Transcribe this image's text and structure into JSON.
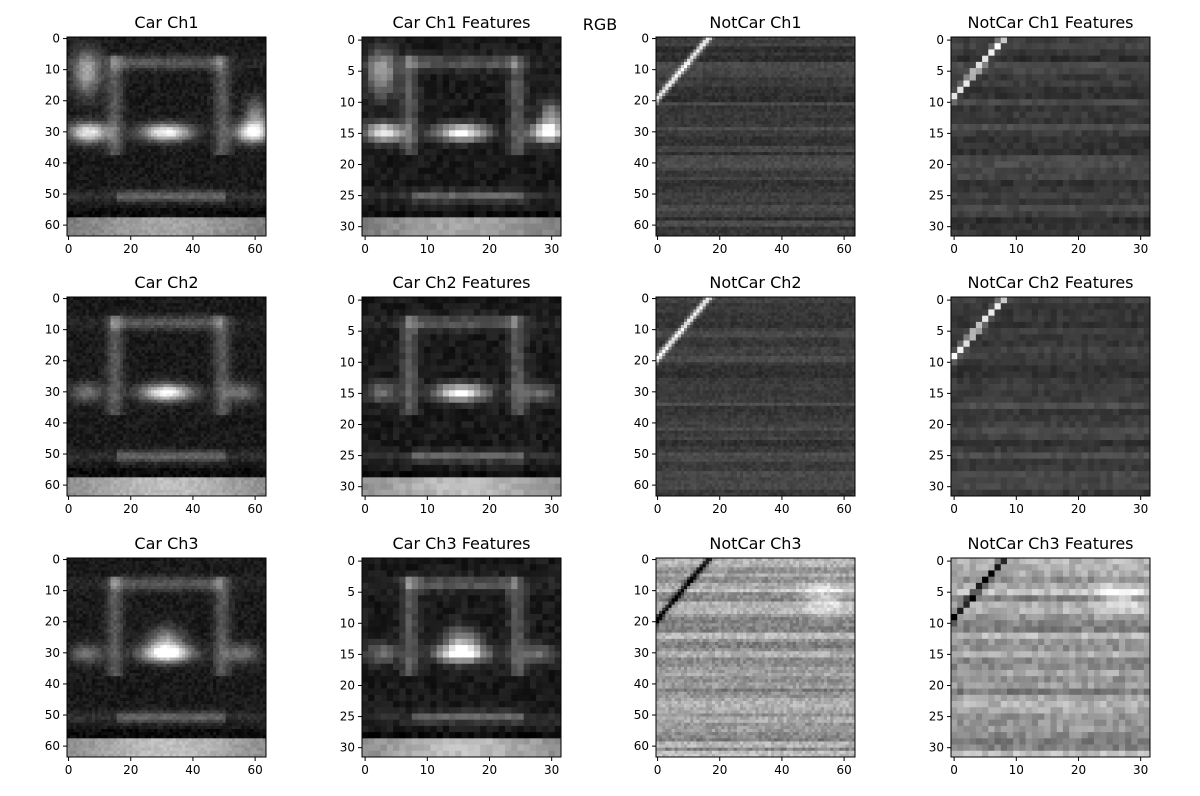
{
  "figure": {
    "suptitle": "RGB"
  },
  "chart_data": [
    {
      "type": "heatmap",
      "title": "Car Ch1",
      "kind": "car",
      "channel": 1,
      "size": 64,
      "xticks": [
        0,
        20,
        40,
        60
      ],
      "yticks": [
        0,
        10,
        20,
        30,
        40,
        50,
        60
      ],
      "xlim": [
        0,
        63
      ],
      "ylim": [
        63,
        0
      ],
      "colormap": "gray"
    },
    {
      "type": "heatmap",
      "title": "Car Ch1 Features",
      "kind": "car",
      "channel": 1,
      "size": 32,
      "xticks": [
        0,
        10,
        20,
        30
      ],
      "yticks": [
        0,
        5,
        10,
        15,
        20,
        25,
        30
      ],
      "xlim": [
        0,
        31
      ],
      "ylim": [
        31,
        0
      ],
      "colormap": "gray"
    },
    {
      "type": "heatmap",
      "title": "NotCar Ch1",
      "kind": "notcar",
      "channel": 1,
      "size": 64,
      "xticks": [
        0,
        20,
        40,
        60
      ],
      "yticks": [
        0,
        10,
        20,
        30,
        40,
        50,
        60
      ],
      "xlim": [
        0,
        63
      ],
      "ylim": [
        63,
        0
      ],
      "colormap": "gray"
    },
    {
      "type": "heatmap",
      "title": "NotCar Ch1 Features",
      "kind": "notcar",
      "channel": 1,
      "size": 32,
      "xticks": [
        0,
        10,
        20,
        30
      ],
      "yticks": [
        0,
        5,
        10,
        15,
        20,
        25,
        30
      ],
      "xlim": [
        0,
        31
      ],
      "ylim": [
        31,
        0
      ],
      "colormap": "gray"
    },
    {
      "type": "heatmap",
      "title": "Car Ch2",
      "kind": "car",
      "channel": 2,
      "size": 64,
      "xticks": [
        0,
        20,
        40,
        60
      ],
      "yticks": [
        0,
        10,
        20,
        30,
        40,
        50,
        60
      ],
      "xlim": [
        0,
        63
      ],
      "ylim": [
        63,
        0
      ],
      "colormap": "gray"
    },
    {
      "type": "heatmap",
      "title": "Car Ch2 Features",
      "kind": "car",
      "channel": 2,
      "size": 32,
      "xticks": [
        0,
        10,
        20,
        30
      ],
      "yticks": [
        0,
        5,
        10,
        15,
        20,
        25,
        30
      ],
      "xlim": [
        0,
        31
      ],
      "ylim": [
        31,
        0
      ],
      "colormap": "gray"
    },
    {
      "type": "heatmap",
      "title": "NotCar Ch2",
      "kind": "notcar",
      "channel": 2,
      "size": 64,
      "xticks": [
        0,
        20,
        40,
        60
      ],
      "yticks": [
        0,
        10,
        20,
        30,
        40,
        50,
        60
      ],
      "xlim": [
        0,
        63
      ],
      "ylim": [
        63,
        0
      ],
      "colormap": "gray"
    },
    {
      "type": "heatmap",
      "title": "NotCar Ch2 Features",
      "kind": "notcar",
      "channel": 2,
      "size": 32,
      "xticks": [
        0,
        10,
        20,
        30
      ],
      "yticks": [
        0,
        5,
        10,
        15,
        20,
        25,
        30
      ],
      "xlim": [
        0,
        31
      ],
      "ylim": [
        31,
        0
      ],
      "colormap": "gray"
    },
    {
      "type": "heatmap",
      "title": "Car Ch3",
      "kind": "car",
      "channel": 3,
      "size": 64,
      "xticks": [
        0,
        20,
        40,
        60
      ],
      "yticks": [
        0,
        10,
        20,
        30,
        40,
        50,
        60
      ],
      "xlim": [
        0,
        63
      ],
      "ylim": [
        63,
        0
      ],
      "colormap": "gray"
    },
    {
      "type": "heatmap",
      "title": "Car Ch3 Features",
      "kind": "car",
      "channel": 3,
      "size": 32,
      "xticks": [
        0,
        10,
        20,
        30
      ],
      "yticks": [
        0,
        5,
        10,
        15,
        20,
        25,
        30
      ],
      "xlim": [
        0,
        31
      ],
      "ylim": [
        31,
        0
      ],
      "colormap": "gray"
    },
    {
      "type": "heatmap",
      "title": "NotCar Ch3",
      "kind": "notcar",
      "channel": 3,
      "size": 64,
      "xticks": [
        0,
        20,
        40,
        60
      ],
      "yticks": [
        0,
        10,
        20,
        30,
        40,
        50,
        60
      ],
      "xlim": [
        0,
        63
      ],
      "ylim": [
        63,
        0
      ],
      "colormap": "gray"
    },
    {
      "type": "heatmap",
      "title": "NotCar Ch3 Features",
      "kind": "notcar",
      "channel": 3,
      "size": 32,
      "xticks": [
        0,
        10,
        20,
        30
      ],
      "yticks": [
        0,
        5,
        10,
        15,
        20,
        25,
        30
      ],
      "xlim": [
        0,
        31
      ],
      "ylim": [
        31,
        0
      ],
      "colormap": "gray"
    }
  ]
}
